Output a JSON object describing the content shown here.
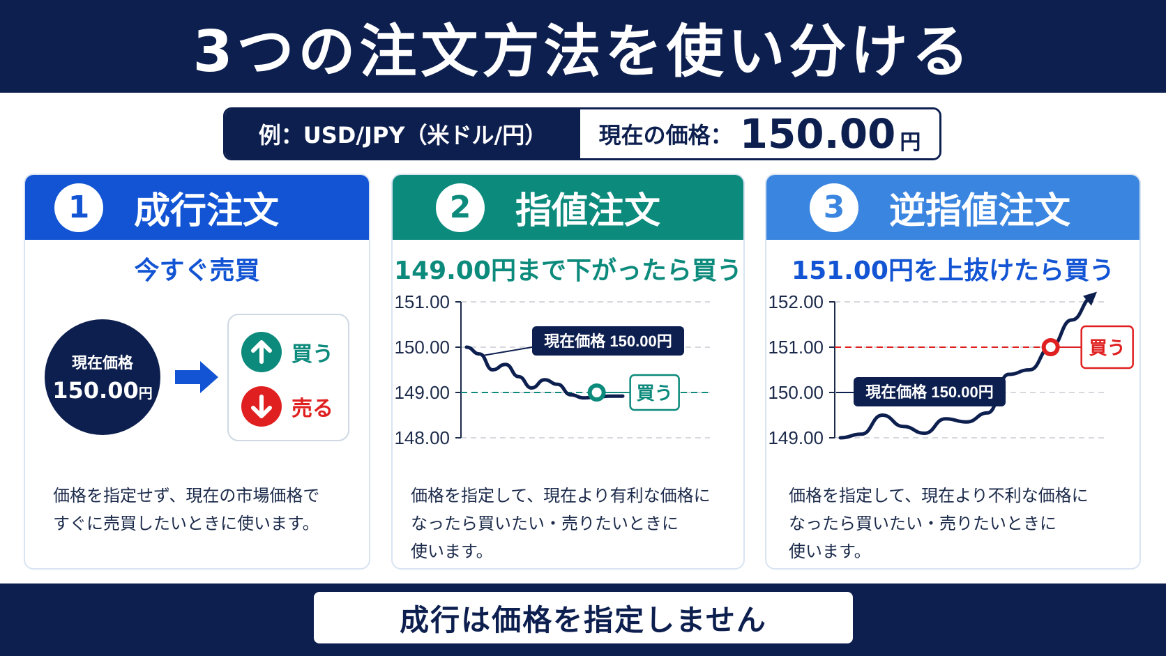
{
  "title": "3つの注文方法を使い分ける",
  "price_bar": {
    "example": "例：USD/JPY（米ドル/円）",
    "current_label": "現在の価格：",
    "current_value": "150.00",
    "unit": "円"
  },
  "cards": [
    {
      "number": "1",
      "title": "成行注文",
      "subtitle": "今すぐ売買",
      "circle_label": "現在価格",
      "circle_value": "150.00",
      "circle_unit": "円",
      "buy_label": "買う",
      "sell_label": "売る",
      "desc_lines": [
        "価格を指定せず、現在の市場価格で",
        "すぐに売買したいときに使います。"
      ],
      "accent": "#1254d3"
    },
    {
      "number": "2",
      "title": "指値注文",
      "subtitle": "149.00円まで下がったら買う",
      "desc_lines": [
        "価格を指定して、現在より有利な価格に",
        "なったら買いたい・売りたいときに",
        "使います。"
      ],
      "accent": "#0c8a7c"
    },
    {
      "number": "3",
      "title": "逆指値注文",
      "subtitle": "151.00円を上抜けたら買う",
      "desc_lines": [
        "価格を指定して、現在より不利な価格に",
        "なったら買いたい・売りたいときに",
        "使います。"
      ],
      "accent": "#3a85e0"
    }
  ],
  "chart_data": [
    {
      "type": "line",
      "title": "",
      "y_ticks": [
        "151.00",
        "150.00",
        "149.00",
        "148.00"
      ],
      "ylim": [
        148,
        151
      ],
      "grid": true,
      "x": [
        0,
        1,
        2,
        3,
        4,
        5,
        6,
        7,
        8,
        9,
        10,
        11,
        12
      ],
      "values": [
        150.0,
        149.85,
        149.5,
        149.62,
        149.35,
        149.1,
        149.28,
        149.18,
        148.95,
        148.88,
        148.9,
        148.92,
        148.92
      ],
      "target_line": 149.0,
      "target_color": "#0c8a7c",
      "annotations": [
        {
          "text": "現在価格 150.00円",
          "at_y": 150.0
        },
        {
          "text": "買う",
          "at_y": 149.0
        }
      ]
    },
    {
      "type": "line",
      "title": "",
      "y_ticks": [
        "152.00",
        "151.00",
        "150.00",
        "149.00"
      ],
      "ylim": [
        149,
        152
      ],
      "grid": true,
      "x": [
        0,
        1,
        2,
        3,
        4,
        5,
        6,
        7,
        8,
        9,
        10,
        11,
        12
      ],
      "values": [
        149.0,
        149.08,
        149.5,
        149.25,
        149.1,
        149.42,
        149.35,
        149.55,
        150.4,
        150.5,
        151.0,
        151.6,
        152.1
      ],
      "target_line": 151.0,
      "target_color": "#e02020",
      "annotations": [
        {
          "text": "現在価格 150.00円",
          "at_y": 150.0
        },
        {
          "text": "買う",
          "at_y": 151.0
        }
      ]
    }
  ],
  "footer": "成行は価格を指定しません"
}
